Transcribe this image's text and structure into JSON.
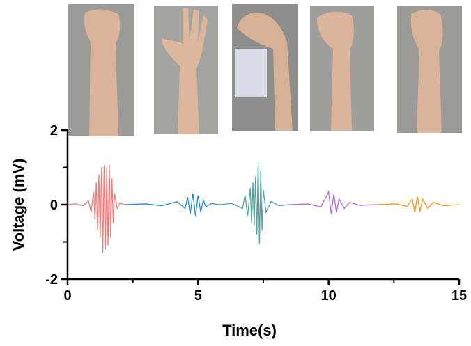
{
  "chart_data": {
    "type": "line",
    "xlabel": "Time(s)",
    "ylabel": "Voltage (mV)",
    "xlim": [
      0,
      15
    ],
    "xticks": [
      0,
      5,
      10,
      15
    ],
    "xminorticks": [
      2.5,
      7.5,
      12.5
    ],
    "ylim": [
      -2,
      2
    ],
    "yticks": [
      -2,
      0,
      2
    ],
    "yminorticks": [
      -1,
      1
    ],
    "series": [
      {
        "color": "#f27c7c",
        "x": [
          0,
          0.3,
          0.6,
          0.8,
          0.9,
          1.0,
          1.05,
          1.1,
          1.15,
          1.2,
          1.25,
          1.3,
          1.35,
          1.4,
          1.45,
          1.5,
          1.55,
          1.6,
          1.65,
          1.7,
          1.75,
          1.8,
          1.9,
          2.0,
          2.2
        ],
        "values": [
          0,
          0.02,
          -0.03,
          0.1,
          -0.2,
          0.35,
          -0.4,
          0.6,
          -0.7,
          0.8,
          -0.9,
          1.0,
          -1.3,
          1.05,
          -1.2,
          1.0,
          -1.1,
          1.08,
          -0.9,
          0.7,
          -0.5,
          0.3,
          -0.1,
          0.04,
          0
        ]
      },
      {
        "color": "#1e88e5",
        "x": [
          2.2,
          3.0,
          3.6,
          4.2,
          4.5,
          4.6,
          4.7,
          4.8,
          4.9,
          5.0,
          5.1,
          5.2,
          5.3,
          5.5,
          5.8
        ],
        "values": [
          0,
          0.02,
          -0.03,
          0.08,
          -0.1,
          0.2,
          -0.25,
          0.3,
          -0.3,
          0.25,
          -0.2,
          0.12,
          -0.06,
          0.03,
          0
        ]
      },
      {
        "color": "#4ea6a1",
        "x": [
          5.8,
          6.3,
          6.7,
          6.8,
          6.9,
          7.0,
          7.05,
          7.1,
          7.15,
          7.2,
          7.25,
          7.3,
          7.35,
          7.4,
          7.45,
          7.5,
          7.6,
          7.8,
          8.1,
          8.5
        ],
        "values": [
          0,
          0.03,
          -0.1,
          0.25,
          -0.3,
          0.45,
          -0.5,
          0.6,
          -0.55,
          0.75,
          -0.8,
          1.12,
          -1.05,
          0.9,
          -0.7,
          0.4,
          -0.2,
          0.08,
          -0.03,
          0
        ]
      },
      {
        "color": "#b066e6",
        "x": [
          8.5,
          9.2,
          9.7,
          9.9,
          10.0,
          10.1,
          10.2,
          10.3,
          10.4,
          10.6,
          10.8,
          11.2,
          11.8
        ],
        "values": [
          0,
          0.02,
          -0.06,
          0.2,
          0.35,
          -0.25,
          0.28,
          -0.2,
          0.15,
          -0.1,
          0.06,
          -0.02,
          0
        ]
      },
      {
        "color": "#f0961e",
        "x": [
          11.8,
          12.6,
          13.0,
          13.2,
          13.3,
          13.4,
          13.5,
          13.6,
          13.8,
          14.0,
          14.4,
          15
        ],
        "values": [
          0,
          0.02,
          -0.05,
          0.15,
          -0.2,
          0.22,
          -0.18,
          0.15,
          -0.1,
          0.06,
          -0.03,
          0
        ]
      }
    ]
  }
}
